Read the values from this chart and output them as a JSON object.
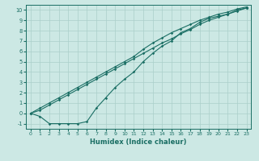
{
  "xlabel": "Humidex (Indice chaleur)",
  "bg_color": "#cce8e4",
  "line_color": "#1a6e64",
  "grid_color": "#aacfca",
  "xlim": [
    -0.5,
    23.5
  ],
  "ylim": [
    -1.5,
    10.5
  ],
  "xticks": [
    0,
    1,
    2,
    3,
    4,
    5,
    6,
    7,
    8,
    9,
    10,
    11,
    12,
    13,
    14,
    15,
    16,
    17,
    18,
    19,
    20,
    21,
    22,
    23
  ],
  "yticks": [
    -1,
    0,
    1,
    2,
    3,
    4,
    5,
    6,
    7,
    8,
    9,
    10
  ],
  "line1_x": [
    0,
    1,
    2,
    3,
    4,
    5,
    6,
    7,
    8,
    9,
    10,
    11,
    12,
    13,
    14,
    15,
    16,
    17,
    18,
    19,
    20,
    21,
    22,
    23
  ],
  "line1_y": [
    0.0,
    -0.3,
    -1.0,
    -1.0,
    -1.0,
    -1.0,
    -0.8,
    0.5,
    1.5,
    2.5,
    3.3,
    4.0,
    5.0,
    5.8,
    6.5,
    7.0,
    7.8,
    8.2,
    8.8,
    9.2,
    9.4,
    9.6,
    10.0,
    10.2
  ],
  "line2_x": [
    0,
    1,
    2,
    3,
    4,
    5,
    6,
    7,
    8,
    9,
    10,
    11,
    12,
    13,
    14,
    15,
    16,
    17,
    18,
    19,
    20,
    21,
    22,
    23
  ],
  "line2_y": [
    0.0,
    0.3,
    0.8,
    1.3,
    1.8,
    2.3,
    2.8,
    3.3,
    3.8,
    4.3,
    4.8,
    5.3,
    5.8,
    6.3,
    6.8,
    7.2,
    7.7,
    8.1,
    8.6,
    9.0,
    9.3,
    9.6,
    9.9,
    10.2
  ],
  "line3_x": [
    0,
    1,
    2,
    3,
    4,
    5,
    6,
    7,
    8,
    9,
    10,
    11,
    12,
    13,
    14,
    15,
    16,
    17,
    18,
    19,
    20,
    21,
    22,
    23
  ],
  "line3_y": [
    0.0,
    0.5,
    1.0,
    1.5,
    2.0,
    2.5,
    3.0,
    3.5,
    4.0,
    4.5,
    5.0,
    5.5,
    6.2,
    6.8,
    7.3,
    7.8,
    8.2,
    8.6,
    9.0,
    9.3,
    9.6,
    9.8,
    10.1,
    10.3
  ]
}
